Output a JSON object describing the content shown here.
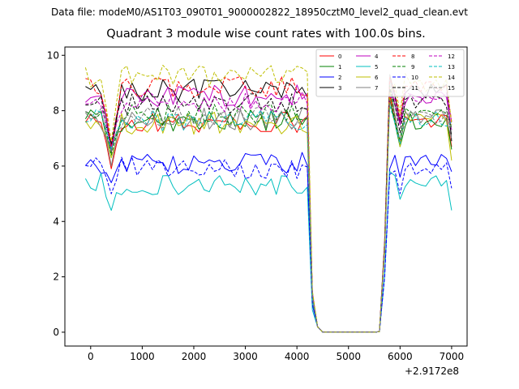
{
  "figure": {
    "suptitle": "Data file: modeM0/AS1T03_090T01_9000002822_18950cztM0_level2_quad_clean.evt"
  },
  "chart_data": {
    "type": "line",
    "title": "Quadrant 3 module wise count rates with 100.0s bins.",
    "xlabel": "",
    "ylabel": "",
    "x_offset_label": "+2.9172e8",
    "xlim": [
      -500,
      7300
    ],
    "ylim": [
      -0.5,
      10.3
    ],
    "xticks": [
      0,
      1000,
      2000,
      3000,
      4000,
      5000,
      6000,
      7000
    ],
    "yticks": [
      0,
      2,
      4,
      6,
      8,
      10
    ],
    "xtick_labels": [
      "0",
      "1000",
      "2000",
      "3000",
      "4000",
      "5000",
      "6000",
      "7000"
    ],
    "ytick_labels": [
      "0",
      "2",
      "4",
      "6",
      "8",
      "10"
    ],
    "legend_position": "top-right",
    "legend_columns": 4,
    "x": [
      -100,
      0,
      100,
      200,
      300,
      400,
      500,
      600,
      700,
      800,
      900,
      1000,
      1100,
      1200,
      1300,
      1400,
      1500,
      1600,
      1700,
      1800,
      1900,
      2000,
      2100,
      2200,
      2300,
      2400,
      2500,
      2600,
      2700,
      2800,
      2900,
      3000,
      3100,
      3200,
      3300,
      3400,
      3500,
      3600,
      3700,
      3800,
      3900,
      4000,
      4100,
      4200,
      4300,
      4400,
      4500,
      4600,
      4700,
      4800,
      4900,
      5000,
      5100,
      5200,
      5300,
      5400,
      5500,
      5600,
      5700,
      5800,
      5900,
      6000,
      6100,
      6200,
      6300,
      6400,
      6500,
      6600,
      6700,
      6800,
      6900,
      7000
    ],
    "gap_x_start": 4500,
    "gap_x_end": 5600,
    "series": [
      {
        "name": "0",
        "color": "#ff0000",
        "dash": false,
        "base": 7.55,
        "drop": 5.9,
        "seg_end": 1.3,
        "seg_start": 0.15,
        "post_first": 8.6,
        "post_level": 7.6,
        "post_dip": 6.9,
        "post_end": 6.7,
        "post_amp": 0.3
      },
      {
        "name": "1",
        "color": "#008000",
        "dash": false,
        "base": 7.65,
        "drop": 6.6,
        "seg_end": 1.2,
        "seg_start": 0.14,
        "post_first": 8.4,
        "post_level": 7.6,
        "post_dip": 6.7,
        "post_end": 6.6,
        "post_amp": 0.3
      },
      {
        "name": "2",
        "color": "#0000ff",
        "dash": false,
        "base": 6.1,
        "drop": 5.4,
        "seg_end": 1.0,
        "seg_start": 0.12,
        "post_first": 5.9,
        "post_level": 6.2,
        "post_dip": 5.6,
        "post_end": 5.8,
        "post_amp": 0.25
      },
      {
        "name": "3",
        "color": "#000000",
        "dash": false,
        "base": 8.75,
        "drop": 6.5,
        "seg_end": 1.4,
        "seg_start": 0.15,
        "post_first": 9.3,
        "post_level": 8.7,
        "post_dip": 7.6,
        "post_end": 6.9,
        "post_amp": 0.35
      },
      {
        "name": "4",
        "color": "#bf00bf",
        "dash": false,
        "base": 8.55,
        "drop": 6.7,
        "seg_end": 1.4,
        "seg_start": 0.15,
        "post_first": 9.2,
        "post_level": 8.4,
        "post_dip": 7.5,
        "post_end": 7.3,
        "post_amp": 0.3
      },
      {
        "name": "5",
        "color": "#00bfbf",
        "dash": false,
        "base": 5.35,
        "drop": 4.4,
        "seg_end": 0.8,
        "seg_start": 0.1,
        "post_first": 5.8,
        "post_level": 5.4,
        "post_dip": 4.8,
        "post_end": 4.4,
        "post_amp": 0.25
      },
      {
        "name": "6",
        "color": "#bfbf00",
        "dash": false,
        "base": 7.55,
        "drop": 6.3,
        "seg_end": 1.2,
        "seg_start": 0.14,
        "post_first": 8.7,
        "post_level": 7.7,
        "post_dip": 6.7,
        "post_end": 6.2,
        "post_amp": 0.3
      },
      {
        "name": "7",
        "color": "#808080",
        "dash": false,
        "base": 7.7,
        "drop": 6.0,
        "seg_end": 1.3,
        "seg_start": 0.14,
        "post_first": 9.3,
        "post_level": 7.8,
        "post_dip": 6.9,
        "post_end": 7.0,
        "post_amp": 0.3
      },
      {
        "name": "8",
        "color": "#ff0000",
        "dash": true,
        "base": 8.85,
        "drop": 6.7,
        "seg_end": 1.4,
        "seg_start": 0.15,
        "post_first": 9.2,
        "post_level": 8.9,
        "post_dip": 7.7,
        "post_end": 7.6,
        "post_amp": 0.3
      },
      {
        "name": "9",
        "color": "#008000",
        "dash": true,
        "base": 7.85,
        "drop": 6.4,
        "seg_end": 1.3,
        "seg_start": 0.14,
        "post_first": 8.9,
        "post_level": 7.9,
        "post_dip": 6.9,
        "post_end": 7.4,
        "post_amp": 0.3
      },
      {
        "name": "10",
        "color": "#0000ff",
        "dash": true,
        "base": 5.95,
        "drop": 5.0,
        "seg_end": 1.0,
        "seg_start": 0.12,
        "post_first": 5.7,
        "post_level": 5.9,
        "post_dip": 5.0,
        "post_end": 5.2,
        "post_amp": 0.25
      },
      {
        "name": "11",
        "color": "#000000",
        "dash": true,
        "base": 8.25,
        "drop": 6.8,
        "seg_end": 1.3,
        "seg_start": 0.15,
        "post_first": 8.8,
        "post_level": 8.3,
        "post_dip": 7.2,
        "post_end": 7.1,
        "post_amp": 0.3
      },
      {
        "name": "12",
        "color": "#bf00bf",
        "dash": true,
        "base": 8.35,
        "drop": 6.6,
        "seg_end": 1.4,
        "seg_start": 0.15,
        "post_first": 8.5,
        "post_level": 8.5,
        "post_dip": 7.5,
        "post_end": 7.6,
        "post_amp": 0.3
      },
      {
        "name": "13",
        "color": "#00bfbf",
        "dash": true,
        "base": 7.65,
        "drop": 6.6,
        "seg_end": 1.2,
        "seg_start": 0.14,
        "post_first": 8.2,
        "post_level": 7.7,
        "post_dip": 6.8,
        "post_end": 7.6,
        "post_amp": 0.3
      },
      {
        "name": "14",
        "color": "#bfbf00",
        "dash": true,
        "base": 9.25,
        "drop": 6.9,
        "seg_end": 1.5,
        "seg_start": 0.16,
        "post_first": 8.6,
        "post_level": 9.0,
        "post_dip": 7.9,
        "post_end": 7.5,
        "post_amp": 0.35
      },
      {
        "name": "15",
        "color": "#808080",
        "dash": true,
        "base": 7.75,
        "drop": 6.5,
        "seg_end": 1.3,
        "seg_start": 0.14,
        "post_first": 8.3,
        "post_level": 7.8,
        "post_dip": 6.9,
        "post_end": 7.3,
        "post_amp": 0.3
      }
    ]
  }
}
